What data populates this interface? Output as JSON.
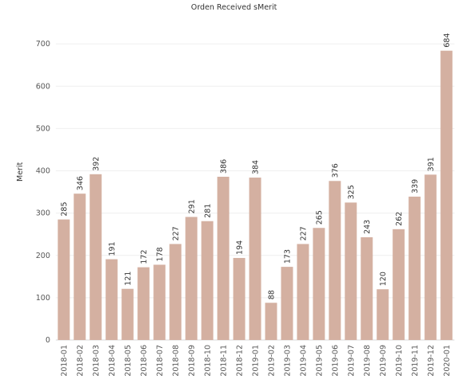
{
  "chart_data": {
    "type": "bar",
    "title": "Orden Received sMerit",
    "xlabel": "",
    "ylabel": "Merit",
    "ylim": [
      0,
      770
    ],
    "yticks": [
      0,
      100,
      200,
      300,
      400,
      500,
      600,
      700
    ],
    "grid": true,
    "bar_color": "#d4b0a1",
    "categories": [
      "2018-01",
      "2018-02",
      "2018-03",
      "2018-04",
      "2018-05",
      "2018-06",
      "2018-07",
      "2018-08",
      "2018-09",
      "2018-10",
      "2018-11",
      "2018-12",
      "2019-01",
      "2019-02",
      "2019-03",
      "2019-04",
      "2019-05",
      "2019-06",
      "2019-07",
      "2019-08",
      "2019-09",
      "2019-10",
      "2019-11",
      "2019-12",
      "2020-01"
    ],
    "values": [
      285,
      346,
      392,
      191,
      121,
      172,
      178,
      227,
      291,
      281,
      386,
      194,
      384,
      88,
      173,
      227,
      265,
      376,
      325,
      243,
      120,
      262,
      339,
      391,
      684
    ]
  }
}
